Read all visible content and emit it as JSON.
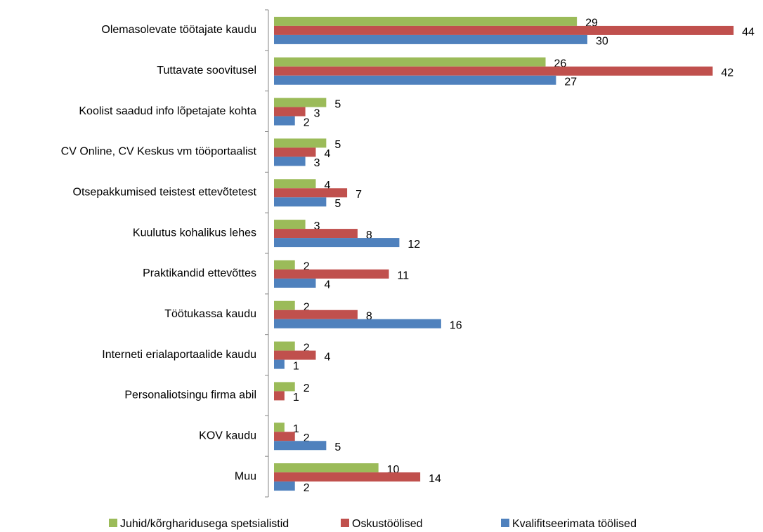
{
  "chart_data": {
    "type": "bar",
    "orientation": "horizontal",
    "categories": [
      "Olemasolevate töötajate kaudu",
      "Tuttavate soovitusel",
      "Koolist saadud info lõpetajate kohta",
      "CV Online, CV Keskus vm tööportaalist",
      "Otsepakkumised teistest ettevõtetest",
      "Kuulutus kohalikus lehes",
      "Praktikandid ettevõttes",
      "Töötukassa kaudu",
      "Interneti erialaportaalide kaudu",
      "Personaliotsingu firma abil",
      "KOV kaudu",
      "Muu"
    ],
    "series": [
      {
        "name": "Juhid/kõrgharidusega spetsialistid",
        "color": "#9bbb59",
        "values": [
          29,
          26,
          5,
          5,
          4,
          3,
          2,
          2,
          2,
          2,
          1,
          10
        ]
      },
      {
        "name": "Oskustöölised",
        "color": "#c0504d",
        "values": [
          44,
          42,
          3,
          4,
          7,
          8,
          11,
          8,
          4,
          1,
          2,
          14
        ]
      },
      {
        "name": "Kvalifitseerimata töölised",
        "color": "#4f81bd",
        "values": [
          30,
          27,
          2,
          3,
          5,
          12,
          4,
          16,
          1,
          null,
          5,
          2
        ]
      }
    ],
    "xlim": [
      0,
      45
    ],
    "legend": "bottom"
  }
}
